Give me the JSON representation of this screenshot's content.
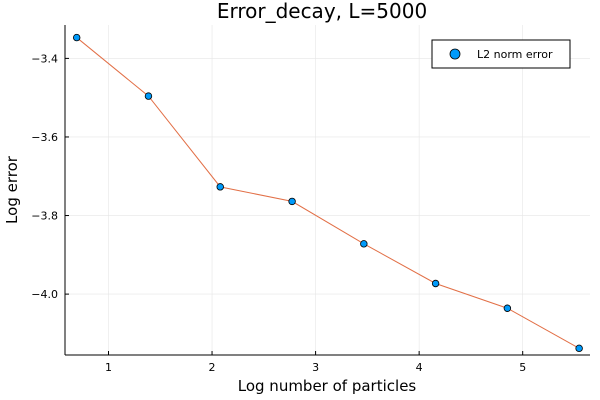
{
  "chart_data": {
    "type": "scatter",
    "title": "Error_decay, L=5000",
    "xlabel": "Log number of particles",
    "ylabel": "Log error",
    "xlim": [
      0.58,
      5.65
    ],
    "ylim": [
      -4.155,
      -3.315
    ],
    "xticks": [
      1,
      2,
      3,
      4,
      5
    ],
    "xtick_labels": [
      "1",
      "2",
      "3",
      "4",
      "5"
    ],
    "yticks": [
      -4.0,
      -3.8,
      -3.6,
      -3.4
    ],
    "ytick_labels": [
      "−4.0",
      "−3.8",
      "−3.6",
      "−3.4"
    ],
    "grid": true,
    "legend_position": "top-right",
    "series": [
      {
        "name": "L2 norm error",
        "marker_color": "#009AFA",
        "line_color": "#E26F46",
        "x": [
          0.693,
          1.386,
          2.079,
          2.773,
          3.466,
          4.159,
          4.852,
          5.545
        ],
        "y": [
          -3.347,
          -3.496,
          -3.727,
          -3.764,
          -3.872,
          -3.973,
          -4.036,
          -4.138
        ]
      }
    ]
  }
}
